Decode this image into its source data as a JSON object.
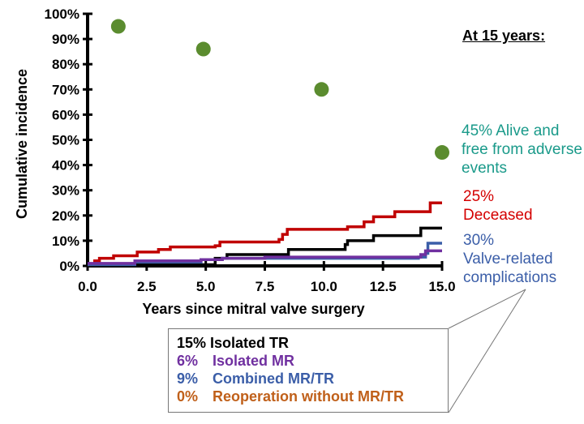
{
  "chart_data": {
    "type": "line",
    "xlabel": "Years since mitral valve surgery",
    "ylabel": "Cumulative incidence",
    "xlim": [
      0,
      15
    ],
    "ylim": [
      0,
      100
    ],
    "xticks": [
      "0.0",
      "2.5",
      "5.0",
      "7.5",
      "10.0",
      "12.5",
      "15.0"
    ],
    "yticks": [
      "0%",
      "10%",
      "20%",
      "30%",
      "40%",
      "50%",
      "60%",
      "70%",
      "80%",
      "90%",
      "100%"
    ],
    "grid": false,
    "series": [
      {
        "key": "deceased",
        "color": "#c00000",
        "step": true,
        "x": [
          0,
          0.3,
          0.5,
          1.1,
          2.1,
          3.0,
          3.5,
          5.4,
          5.6,
          8.1,
          8.25,
          8.45,
          11.0,
          11.7,
          12.1,
          13.0,
          14.5,
          15.0
        ],
        "y": [
          0.5,
          2,
          3,
          4,
          5.5,
          6.5,
          7.5,
          8,
          9.5,
          10.5,
          12.5,
          14.5,
          15.5,
          17.5,
          19.5,
          21.5,
          25,
          25
        ]
      },
      {
        "key": "isolated-tr",
        "color": "#000000",
        "step": true,
        "x": [
          0,
          5.4,
          5.9,
          8.5,
          10.9,
          11.0,
          12.1,
          14.1,
          15.0
        ],
        "y": [
          0.5,
          3,
          4.5,
          6.5,
          8.5,
          10,
          12,
          15,
          15
        ]
      },
      {
        "key": "combined-mr-tr",
        "color": "#3b5ea8",
        "step": true,
        "x": [
          0,
          2.0,
          4.8,
          5.7,
          14.0,
          14.3,
          14.4,
          15.0
        ],
        "y": [
          0.5,
          1.5,
          2.5,
          3,
          3.5,
          5,
          9,
          9
        ]
      },
      {
        "key": "isolated-mr",
        "color": "#7030a0",
        "step": true,
        "x": [
          0,
          2.0,
          4.8,
          5.7,
          7.5,
          14.1,
          14.3,
          15.0
        ],
        "y": [
          1,
          2,
          2.5,
          3,
          3.5,
          4.5,
          6,
          6
        ]
      },
      {
        "key": "alive-free",
        "color": "#5b8c2f",
        "type": "scatter",
        "x": [
          1.3,
          4.9,
          9.9,
          15.0
        ],
        "y": [
          95,
          86,
          70,
          45
        ]
      }
    ],
    "annotations": {
      "header": "At 15 years:",
      "alive": "45% Alive and free from adverse events",
      "deceased_pct": "25%",
      "deceased": "Deceased",
      "valve_pct": "30%",
      "valve": "Valve-related complications"
    },
    "breakdown": [
      {
        "pct": "15%",
        "label": "Isolated TR",
        "color": "#000000"
      },
      {
        "pct": "6%",
        "label": "Isolated MR",
        "color": "#7030a0"
      },
      {
        "pct": "9%",
        "label": "Combined MR/TR",
        "color": "#3b5ea8"
      },
      {
        "pct": "0%",
        "label": "Reoperation without MR/TR",
        "color": "#c0601a"
      }
    ]
  }
}
